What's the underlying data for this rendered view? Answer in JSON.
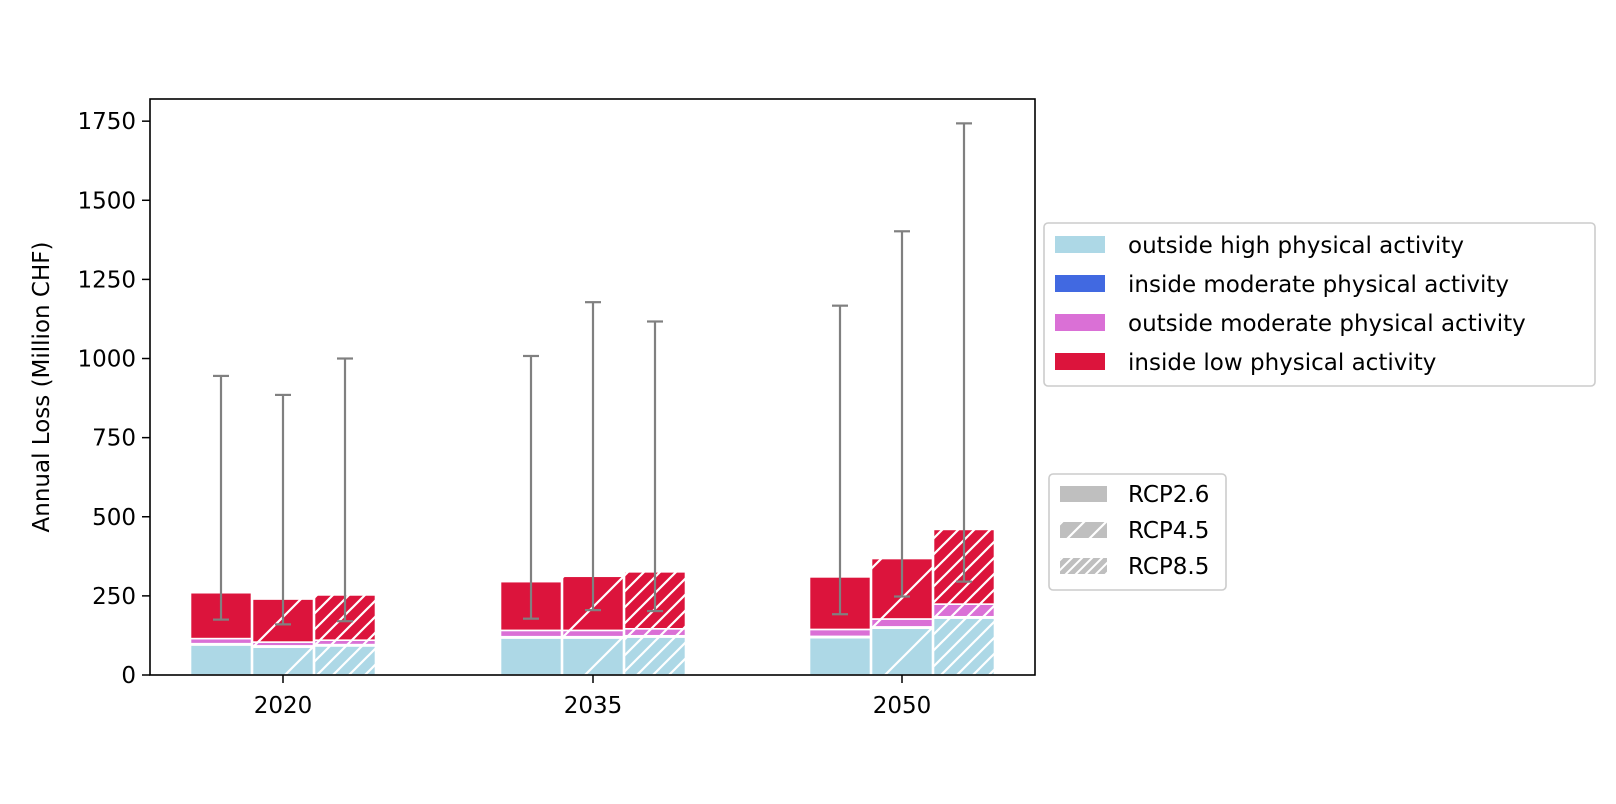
{
  "chart_data": {
    "type": "bar",
    "stacked": true,
    "title": "",
    "xlabel": "",
    "ylabel": "Annual Loss (Million CHF)",
    "categories": [
      "2020",
      "2035",
      "2050"
    ],
    "ylim": [
      0,
      1820
    ],
    "yticks": [
      0,
      250,
      500,
      750,
      1000,
      1250,
      1500,
      1750
    ],
    "grid": false,
    "scenarios": [
      {
        "name": "RCP2.6",
        "hatch": "none"
      },
      {
        "name": "RCP4.5",
        "hatch": "sparse-diagonal"
      },
      {
        "name": "RCP8.5",
        "hatch": "dense-diagonal"
      }
    ],
    "components": [
      {
        "name": "outside high physical activity",
        "color": "#add8e6"
      },
      {
        "name": "inside moderate physical activity",
        "color": "#4169e1"
      },
      {
        "name": "outside moderate physical activity",
        "color": "#da70d6"
      },
      {
        "name": "inside low physical activity",
        "color": "#dc143c"
      }
    ],
    "bars": [
      {
        "category": "2020",
        "scenario": "RCP2.6",
        "segments": [
          95,
          4,
          16,
          145
        ],
        "total": 260,
        "error": [
          175,
          945
        ]
      },
      {
        "category": "2020",
        "scenario": "RCP4.5",
        "segments": [
          88,
          4,
          12,
          136
        ],
        "total": 240,
        "error": [
          160,
          885
        ]
      },
      {
        "category": "2020",
        "scenario": "RCP8.5",
        "segments": [
          92,
          4,
          14,
          143
        ],
        "total": 253,
        "error": [
          170,
          1000
        ]
      },
      {
        "category": "2035",
        "scenario": "RCP2.6",
        "segments": [
          117,
          4,
          20,
          154
        ],
        "total": 295,
        "error": [
          178,
          1008
        ]
      },
      {
        "category": "2035",
        "scenario": "RCP4.5",
        "segments": [
          117,
          4,
          20,
          171
        ],
        "total": 312,
        "error": [
          205,
          1178
        ]
      },
      {
        "category": "2035",
        "scenario": "RCP8.5",
        "segments": [
          120,
          4,
          22,
          180
        ],
        "total": 326,
        "error": [
          202,
          1117
        ]
      },
      {
        "category": "2050",
        "scenario": "RCP2.6",
        "segments": [
          118,
          4,
          22,
          166
        ],
        "total": 310,
        "error": [
          192,
          1167
        ]
      },
      {
        "category": "2050",
        "scenario": "RCP4.5",
        "segments": [
          148,
          4,
          25,
          191
        ],
        "total": 368,
        "error": [
          248,
          1402
        ]
      },
      {
        "category": "2050",
        "scenario": "RCP8.5",
        "segments": [
          180,
          4,
          40,
          236
        ],
        "total": 460,
        "error": [
          295,
          1743
        ]
      }
    ],
    "error_bar_color": "#808080",
    "legend": {
      "placement": "right of plot",
      "entries_components": true,
      "entries_scenarios": true
    }
  }
}
